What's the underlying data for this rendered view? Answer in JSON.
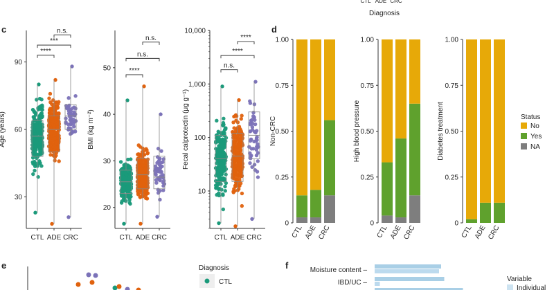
{
  "colors": {
    "CTL": "#1a9a7a",
    "ADE": "#e0620e",
    "CRC": "#7b72b8",
    "No": "#e7a908",
    "Yes": "#5fa12d",
    "NA": "#7e7e7e"
  },
  "panel_labels": {
    "c": "c",
    "d": "d",
    "e": "e",
    "f": "f"
  },
  "top_fragment": {
    "ticks": [
      "CTL",
      "ADE",
      "CRC"
    ],
    "xlabel": "Diagnosis"
  },
  "chart_data": [
    {
      "id": "age",
      "type": "box-strip",
      "ylabel": "Age (years)",
      "yscale": "linear",
      "ylim": [
        16,
        104
      ],
      "yticks": [
        "30",
        "60",
        "90"
      ],
      "ytick_values": [
        30,
        60,
        90
      ],
      "categories": [
        "CTL",
        "ADE",
        "CRC"
      ],
      "box": [
        {
          "q1": 48,
          "med": 57,
          "q3": 64,
          "lo": 23,
          "hi": 80,
          "n": 230
        },
        {
          "q1": 50,
          "med": 60,
          "q3": 66,
          "lo": 18,
          "hi": 82,
          "n": 260
        },
        {
          "q1": 60,
          "med": 66,
          "q3": 71,
          "lo": 21,
          "hi": 88,
          "n": 50
        }
      ],
      "comparisons": [
        {
          "from": 0,
          "to": 1,
          "label": "****",
          "y": 93
        },
        {
          "from": 0,
          "to": 2,
          "label": "***",
          "y": 97.5
        },
        {
          "from": 1,
          "to": 2,
          "label": "n.s.",
          "y": 102
        }
      ]
    },
    {
      "id": "bmi",
      "type": "box-strip",
      "ylabel": "BMI (kg m⁻²)",
      "yscale": "linear",
      "ylim": [
        15.5,
        58
      ],
      "yticks": [
        "20",
        "30",
        "40",
        "50"
      ],
      "ytick_values": [
        20,
        30,
        40,
        50
      ],
      "categories": [
        "CTL",
        "ADE",
        "CRC"
      ],
      "box": [
        {
          "q1": 23,
          "med": 25.5,
          "q3": 28,
          "lo": 16.5,
          "hi": 43,
          "n": 230
        },
        {
          "q1": 24,
          "med": 27,
          "q3": 30.5,
          "lo": 16.5,
          "hi": 46,
          "n": 260
        },
        {
          "q1": 24,
          "med": 26.5,
          "q3": 31,
          "lo": 18,
          "hi": 40,
          "n": 50
        }
      ],
      "comparisons": [
        {
          "from": 0,
          "to": 1,
          "label": "****",
          "y": 48.5
        },
        {
          "from": 0,
          "to": 2,
          "label": "n.s.",
          "y": 52
        },
        {
          "from": 1,
          "to": 2,
          "label": "n.s.",
          "y": 55.5
        }
      ]
    },
    {
      "id": "fcal",
      "type": "box-strip",
      "ylabel": "Fecal calprotectin (μg g⁻¹)",
      "yscale": "log",
      "ylim": [
        2,
        10000
      ],
      "yticks": [
        "10",
        "100",
        "1,000",
        "10,000"
      ],
      "ytick_values": [
        10,
        100,
        1000,
        10000
      ],
      "categories": [
        "CTL",
        "ADE",
        "CRC"
      ],
      "box": [
        {
          "q1": 15,
          "med": 40,
          "q3": 110,
          "lo": 2.5,
          "hi": 900,
          "n": 230
        },
        {
          "q1": 15,
          "med": 45,
          "q3": 120,
          "lo": 2.2,
          "hi": 500,
          "n": 260
        },
        {
          "q1": 40,
          "med": 110,
          "q3": 300,
          "lo": 3,
          "hi": 1100,
          "n": 50
        }
      ],
      "comparisons": [
        {
          "from": 0,
          "to": 1,
          "label": "n.s.",
          "y": 1850
        },
        {
          "from": 0,
          "to": 2,
          "label": "****",
          "y": 3400
        },
        {
          "from": 1,
          "to": 2,
          "label": "****",
          "y": 6200
        }
      ]
    },
    {
      "id": "noncrc",
      "type": "stacked-bar",
      "ylabel": "Non-CRC",
      "ylim": [
        0,
        1
      ],
      "yticks": [
        "0",
        "0.25",
        "0.50",
        "0.75",
        "1.00"
      ],
      "ytick_values": [
        0,
        0.25,
        0.5,
        0.75,
        1
      ],
      "categories": [
        "CTL",
        "ADE",
        "CRC"
      ],
      "series": [
        {
          "name": "NA",
          "values": [
            0.03,
            0.03,
            0.15
          ]
        },
        {
          "name": "Yes",
          "values": [
            0.12,
            0.15,
            0.41
          ]
        },
        {
          "name": "No",
          "values": [
            0.85,
            0.82,
            0.44
          ]
        }
      ]
    },
    {
      "id": "hbp",
      "type": "stacked-bar",
      "ylabel": "High blood pressure",
      "ylim": [
        0,
        1
      ],
      "yticks": [
        "0",
        "0.25",
        "0.50",
        "0.75",
        "1.00"
      ],
      "ytick_values": [
        0,
        0.25,
        0.5,
        0.75,
        1
      ],
      "categories": [
        "CTL",
        "ADE",
        "CRC"
      ],
      "series": [
        {
          "name": "NA",
          "values": [
            0.04,
            0.03,
            0.15
          ]
        },
        {
          "name": "Yes",
          "values": [
            0.29,
            0.43,
            0.5
          ]
        },
        {
          "name": "No",
          "values": [
            0.67,
            0.54,
            0.35
          ]
        }
      ]
    },
    {
      "id": "diab",
      "type": "stacked-bar",
      "ylabel": "Diabetes treatment",
      "ylim": [
        0,
        1
      ],
      "yticks": [
        "0",
        "0.25",
        "0.50",
        "0.75",
        "1.00"
      ],
      "ytick_values": [
        0,
        0.25,
        0.5,
        0.75,
        1
      ],
      "categories": [
        "CTL",
        "ADE",
        "CRC"
      ],
      "series": [
        {
          "name": "NA",
          "values": [
            0,
            0,
            0
          ]
        },
        {
          "name": "Yes",
          "values": [
            0.02,
            0.11,
            0.11
          ]
        },
        {
          "name": "No",
          "values": [
            0.98,
            0.89,
            0.89
          ]
        }
      ]
    }
  ],
  "status_legend": {
    "title": "Status",
    "items": [
      "No",
      "Yes",
      "NA"
    ]
  },
  "panel_e": {
    "legend_title": "Diagnosis",
    "legend_item": "CTL"
  },
  "panel_f": {
    "labels": [
      "Moisture content –",
      "IBD/UC –"
    ],
    "bar_values": [
      [
        0.64,
        0.62
      ],
      [
        0.67,
        0.05
      ]
    ],
    "legend_title": "Variable",
    "legend_item": "Individual"
  }
}
